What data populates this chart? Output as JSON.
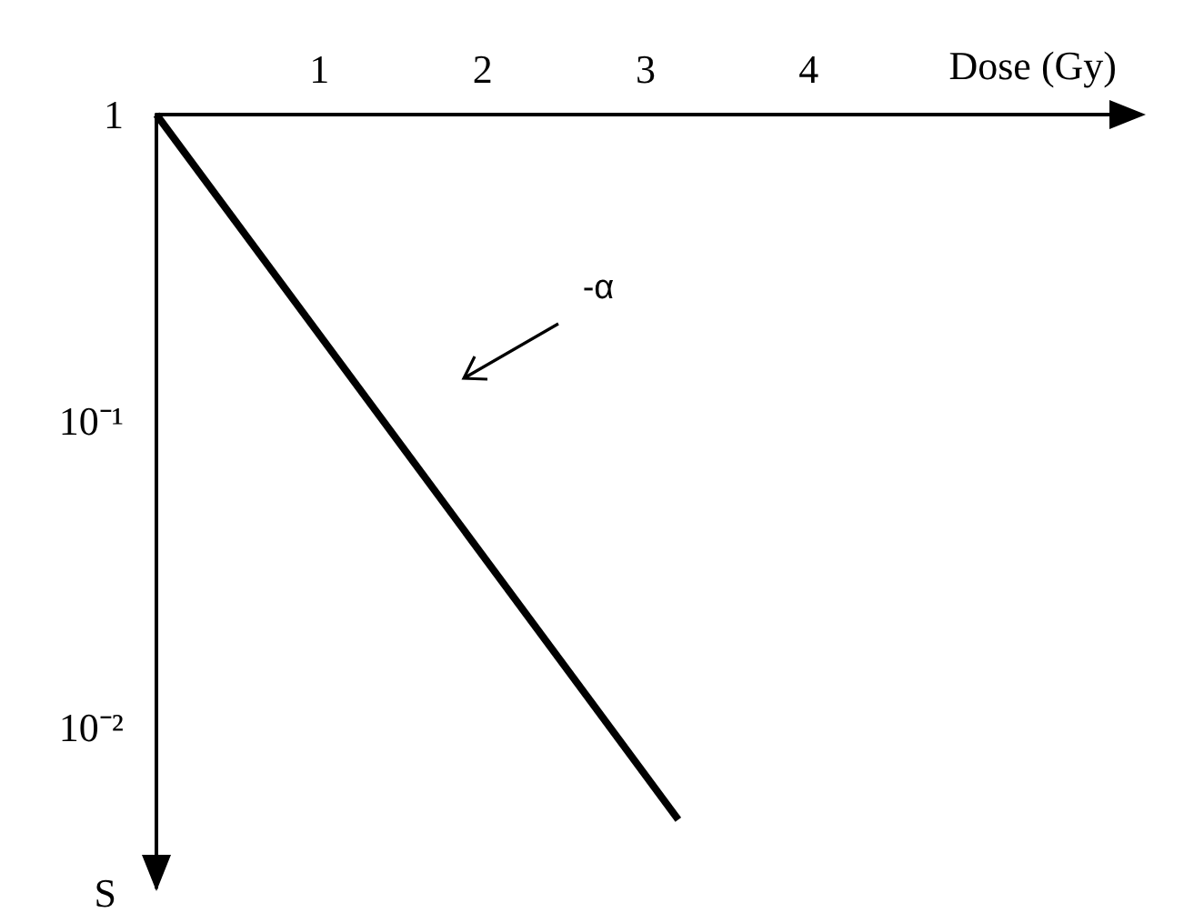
{
  "chart_data": {
    "type": "line",
    "xlabel": "Dose (Gy)",
    "ylabel": "S",
    "x": [
      0,
      3.2
    ],
    "series": [
      {
        "color": "#000000",
        "values": [
          1,
          0.005
        ]
      }
    ],
    "xlim": [
      0,
      6
    ],
    "xticks": [
      1,
      2,
      3,
      4
    ],
    "ylim": [
      0.003,
      1
    ],
    "yticks": [
      1,
      {
        "value": 0.1,
        "label": "10⁻¹"
      },
      {
        "value": 0.01,
        "label": "10⁻²"
      }
    ],
    "log": "y",
    "grid": false,
    "marker": "none",
    "line_style": "solid",
    "annotations": [
      "-α"
    ]
  }
}
